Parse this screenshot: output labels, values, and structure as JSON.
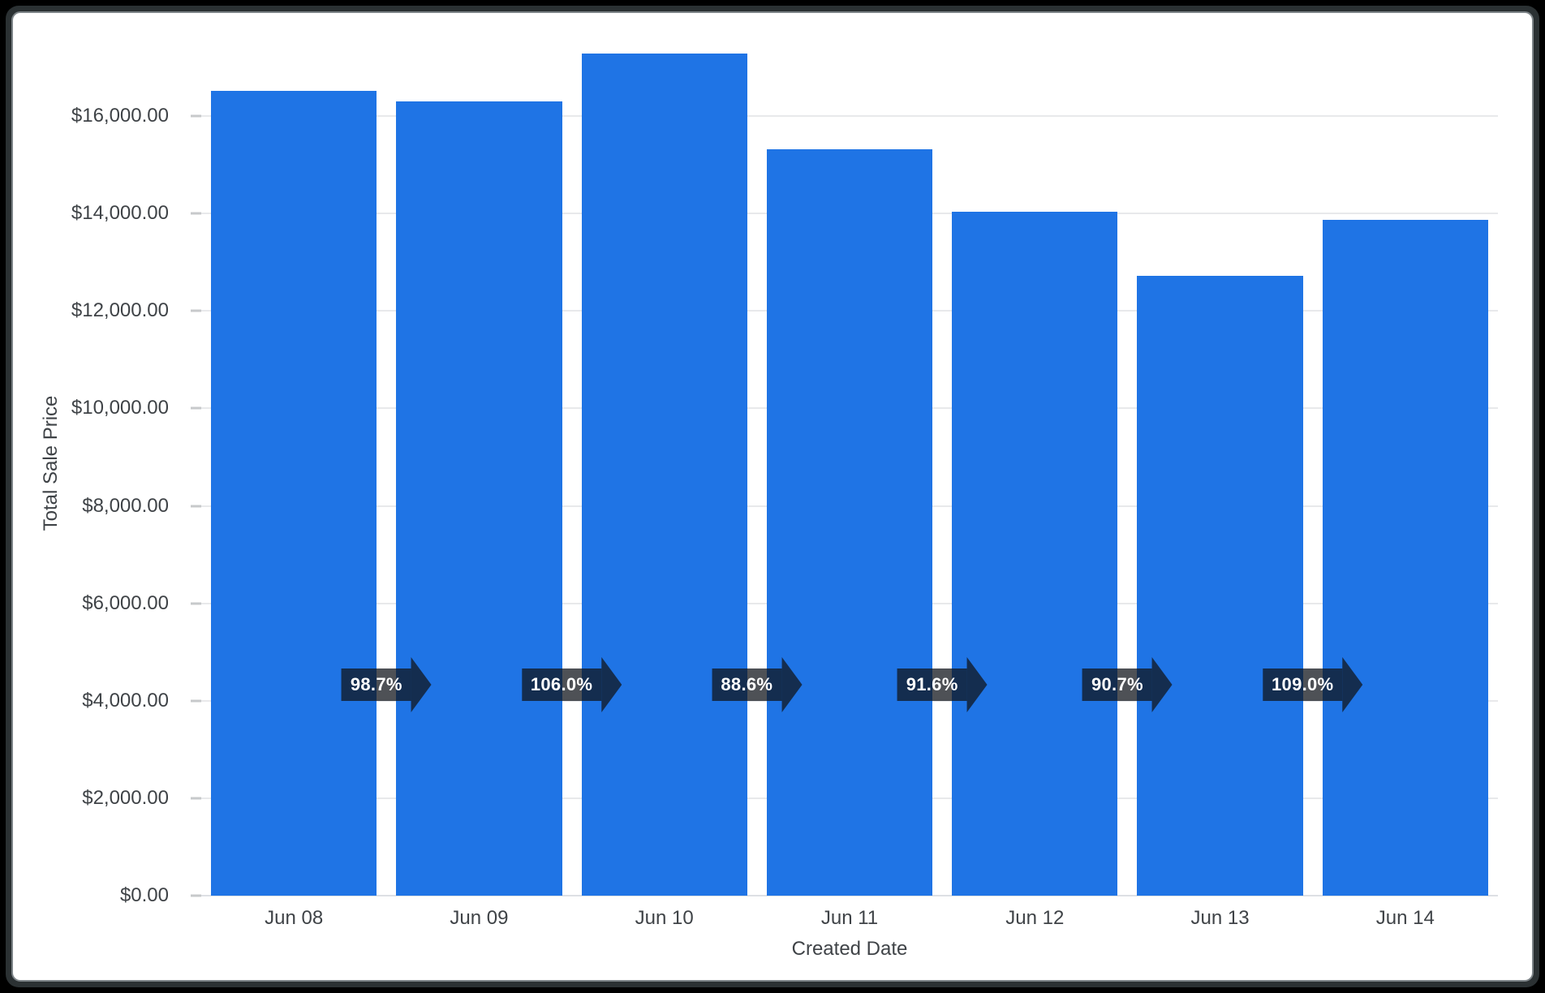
{
  "chart_data": {
    "type": "bar",
    "title": "",
    "xlabel": "Created Date",
    "ylabel": "Total Sale Price",
    "categories": [
      "Jun 08",
      "Jun 09",
      "Jun 10",
      "Jun 11",
      "Jun 12",
      "Jun 13",
      "Jun 14"
    ],
    "values": [
      16520,
      16300,
      17280,
      15310,
      14030,
      12720,
      13870
    ],
    "value_format": "USD",
    "ylim": [
      0,
      17465
    ],
    "yticks": [
      0,
      2000,
      4000,
      6000,
      8000,
      10000,
      12000,
      14000,
      16000
    ],
    "ytick_labels": [
      "$0.00",
      "$2,000.00",
      "$4,000.00",
      "$6,000.00",
      "$8,000.00",
      "$10,000.00",
      "$12,000.00",
      "$14,000.00",
      "$16,000.00"
    ],
    "grid": "horizontal",
    "legend": "none",
    "bar_color": "#1f74e5",
    "growth_arrows": {
      "note": "period-over-period percent change shown as dark arrow badges between adjacent bars",
      "labels": [
        "98.7%",
        "106.0%",
        "88.6%",
        "91.6%",
        "90.7%",
        "109.0%"
      ],
      "text_color": "#ffffff",
      "fill": "rgba(16,20,27,0.74)"
    }
  },
  "colors": {
    "grid_line": "#e8e9eb",
    "axis_text": "#3f4347",
    "frame_border": "#2b3133",
    "card_background": "#ffffff"
  }
}
